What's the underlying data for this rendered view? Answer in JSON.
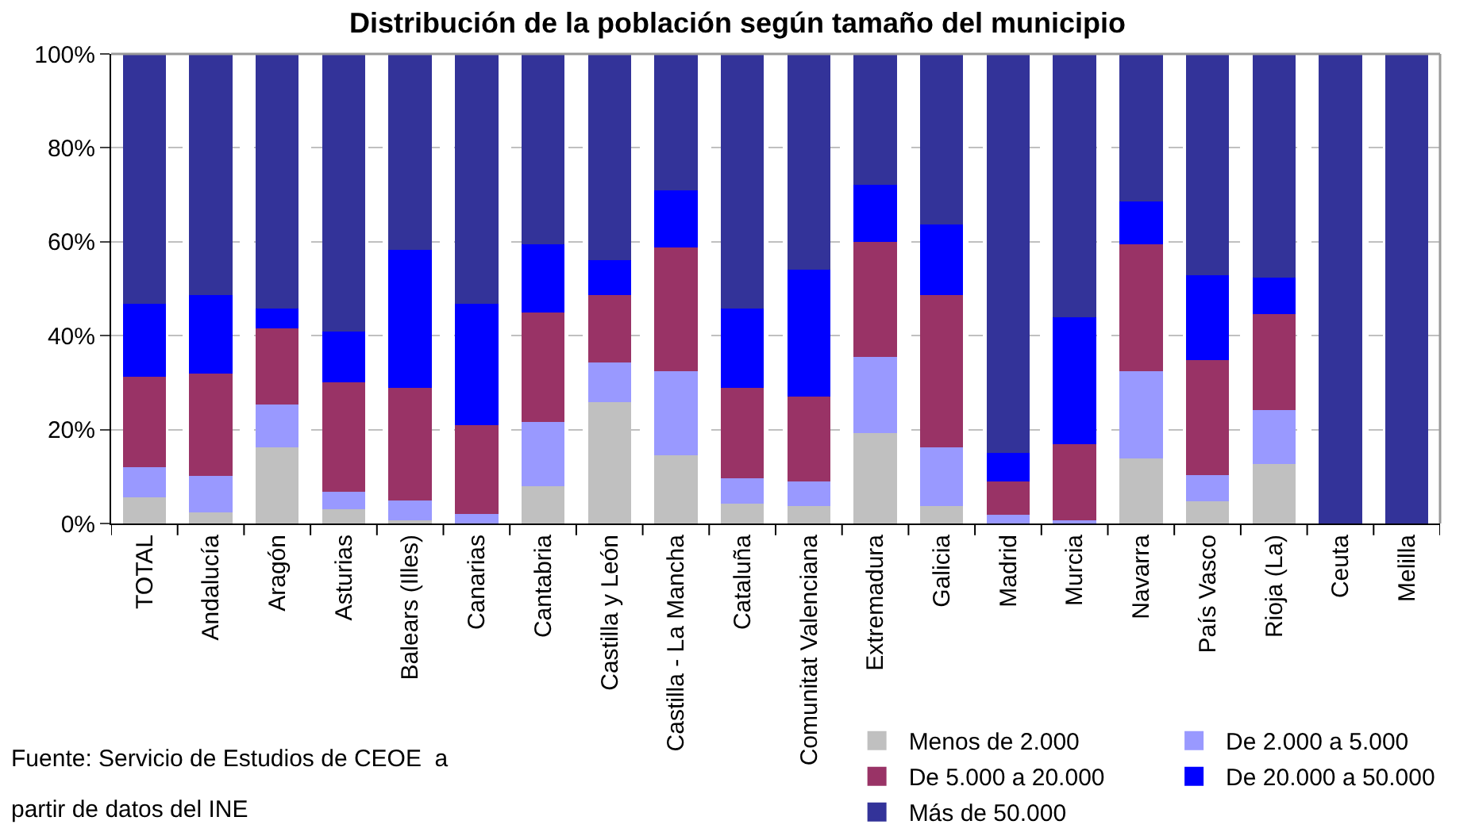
{
  "chart_data": {
    "type": "bar",
    "stacked": true,
    "title": "Distribución de la población según tamaño del municipio",
    "categories": [
      "TOTAL",
      "Andalucía",
      "Aragón",
      "Asturias",
      "Balears (Illes)",
      "Canarias",
      "Cantabria",
      "Castilla y León",
      "Castilla - La Mancha",
      "Cataluña",
      "Comunitat Valenciana",
      "Extremadura",
      "Galicia",
      "Madrid",
      "Murcia",
      "Navarra",
      "País Vasco",
      "Rioja (La)",
      "Ceuta",
      "Melilla"
    ],
    "series": [
      {
        "name": "Menos de 2.000",
        "color": "#c0c0c0",
        "values": [
          5.5,
          2.4,
          16.3,
          3.1,
          0.7,
          0,
          7.9,
          25.8,
          14.5,
          4.2,
          3.7,
          19.3,
          3.7,
          0,
          0,
          13.9,
          4.8,
          12.6,
          0,
          0
        ]
      },
      {
        "name": "De 2.000 a 5.000",
        "color": "#9999ff",
        "values": [
          6.5,
          7.8,
          9.0,
          3.6,
          4.2,
          2.0,
          13.8,
          8.5,
          18.0,
          5.4,
          5.3,
          16.2,
          12.6,
          1.9,
          0.7,
          18.6,
          5.5,
          11.5,
          0,
          0
        ]
      },
      {
        "name": "De 5.000 a 20.000",
        "color": "#993366",
        "values": [
          19.2,
          21.7,
          16.2,
          23.3,
          24.0,
          19.0,
          23.3,
          14.4,
          26.3,
          19.3,
          18.1,
          24.5,
          32.4,
          7.1,
          16.2,
          27.0,
          24.5,
          20.5,
          0,
          0
        ]
      },
      {
        "name": "De 20.000 a 50.000",
        "color": "#0000ff",
        "values": [
          15.6,
          16.8,
          4.2,
          10.9,
          29.4,
          25.8,
          14.5,
          7.3,
          12.1,
          16.8,
          26.9,
          12.1,
          15.0,
          6.0,
          27.0,
          9.0,
          18.0,
          7.8,
          0,
          0
        ]
      },
      {
        "name": "Más de 50.000",
        "color": "#333399",
        "values": [
          53.2,
          51.3,
          54.3,
          59.1,
          41.7,
          53.2,
          40.5,
          44.0,
          29.1,
          54.3,
          46.0,
          27.9,
          36.3,
          85.0,
          56.1,
          31.5,
          47.2,
          47.6,
          100,
          100
        ]
      }
    ],
    "ylim": [
      0,
      100
    ],
    "yticks": [
      {
        "value": 0,
        "label": "0%"
      },
      {
        "value": 20,
        "label": "20%"
      },
      {
        "value": 40,
        "label": "40%"
      },
      {
        "value": 60,
        "label": "60%"
      },
      {
        "value": 80,
        "label": "80%"
      },
      {
        "value": 100,
        "label": "100%"
      }
    ],
    "grid": "y",
    "legend": "bottom right",
    "annotations": [
      "Fuente: Servicio de Estudios de CEOE  a",
      "partir de datos del INE"
    ]
  }
}
